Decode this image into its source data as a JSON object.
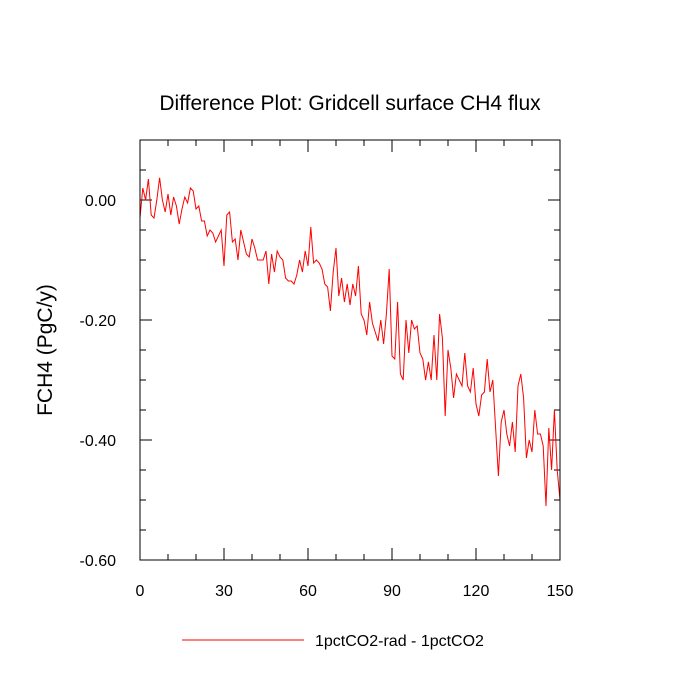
{
  "chart_data": {
    "type": "line",
    "title": "Difference Plot: Gridcell surface CH4 flux",
    "ylabel": "FCH4  (PgC/y)",
    "xlabel": "",
    "xlim": [
      0,
      150
    ],
    "ylim": [
      -0.6,
      0.1
    ],
    "xticks": [
      0,
      30,
      60,
      90,
      120,
      150
    ],
    "xtick_labels": [
      "0",
      "30",
      "60",
      "90",
      "120",
      "150"
    ],
    "yticks": [
      0.0,
      -0.2,
      -0.4,
      -0.6
    ],
    "ytick_labels": [
      "0.00",
      "-0.20",
      "-0.40",
      "-0.60"
    ],
    "grid": false,
    "legend_position": "bottom-center",
    "series": [
      {
        "name": "1pctCO2-rad - 1pctCO2",
        "color": "#ff0000",
        "x": [
          0,
          1,
          2,
          3,
          4,
          5,
          6,
          7,
          8,
          9,
          10,
          11,
          12,
          13,
          14,
          15,
          16,
          17,
          18,
          19,
          20,
          21,
          22,
          23,
          24,
          25,
          26,
          27,
          28,
          29,
          30,
          31,
          32,
          33,
          34,
          35,
          36,
          37,
          38,
          39,
          40,
          41,
          42,
          43,
          44,
          45,
          46,
          47,
          48,
          49,
          50,
          51,
          52,
          53,
          54,
          55,
          56,
          57,
          58,
          59,
          60,
          61,
          62,
          63,
          64,
          65,
          66,
          67,
          68,
          69,
          70,
          71,
          72,
          73,
          74,
          75,
          76,
          77,
          78,
          79,
          80,
          81,
          82,
          83,
          84,
          85,
          86,
          87,
          88,
          89,
          90,
          91,
          92,
          93,
          94,
          95,
          96,
          97,
          98,
          99,
          100,
          101,
          102,
          103,
          104,
          105,
          106,
          107,
          108,
          109,
          110,
          111,
          112,
          113,
          114,
          115,
          116,
          117,
          118,
          119,
          120,
          121,
          122,
          123,
          124,
          125,
          126,
          127,
          128,
          129,
          130,
          131,
          132,
          133,
          134,
          135,
          136,
          137,
          138,
          139,
          140,
          141,
          142,
          143,
          144,
          145,
          146,
          147,
          148,
          149,
          150
        ],
        "y": [
          -0.03,
          0.02,
          0.0,
          0.035,
          -0.025,
          -0.03,
          0.0,
          0.037,
          0.0,
          -0.02,
          0.01,
          -0.025,
          0.005,
          -0.01,
          -0.04,
          -0.015,
          0.005,
          -0.005,
          0.02,
          0.015,
          -0.015,
          -0.01,
          -0.035,
          -0.035,
          -0.06,
          -0.05,
          -0.055,
          -0.07,
          -0.06,
          -0.05,
          -0.11,
          -0.025,
          -0.02,
          -0.07,
          -0.065,
          -0.1,
          -0.05,
          -0.07,
          -0.09,
          -0.095,
          -0.065,
          -0.08,
          -0.1,
          -0.1,
          -0.1,
          -0.085,
          -0.14,
          -0.09,
          -0.12,
          -0.085,
          -0.095,
          -0.1,
          -0.13,
          -0.135,
          -0.135,
          -0.14,
          -0.125,
          -0.1,
          -0.12,
          -0.085,
          -0.11,
          -0.045,
          -0.105,
          -0.1,
          -0.105,
          -0.115,
          -0.14,
          -0.145,
          -0.185,
          -0.12,
          -0.08,
          -0.16,
          -0.13,
          -0.17,
          -0.14,
          -0.175,
          -0.14,
          -0.16,
          -0.11,
          -0.19,
          -0.2,
          -0.225,
          -0.17,
          -0.205,
          -0.22,
          -0.235,
          -0.2,
          -0.24,
          -0.19,
          -0.115,
          -0.26,
          -0.265,
          -0.17,
          -0.29,
          -0.3,
          -0.2,
          -0.255,
          -0.2,
          -0.215,
          -0.21,
          -0.255,
          -0.265,
          -0.3,
          -0.27,
          -0.3,
          -0.225,
          -0.3,
          -0.19,
          -0.23,
          -0.36,
          -0.25,
          -0.28,
          -0.33,
          -0.29,
          -0.3,
          -0.31,
          -0.255,
          -0.31,
          -0.32,
          -0.28,
          -0.34,
          -0.36,
          -0.325,
          -0.32,
          -0.265,
          -0.32,
          -0.3,
          -0.38,
          -0.46,
          -0.37,
          -0.35,
          -0.39,
          -0.41,
          -0.37,
          -0.42,
          -0.31,
          -0.29,
          -0.33,
          -0.43,
          -0.4,
          -0.42,
          -0.35,
          -0.39,
          -0.39,
          -0.41,
          -0.51,
          -0.38,
          -0.45,
          -0.35,
          -0.45,
          -0.5
        ]
      }
    ]
  }
}
